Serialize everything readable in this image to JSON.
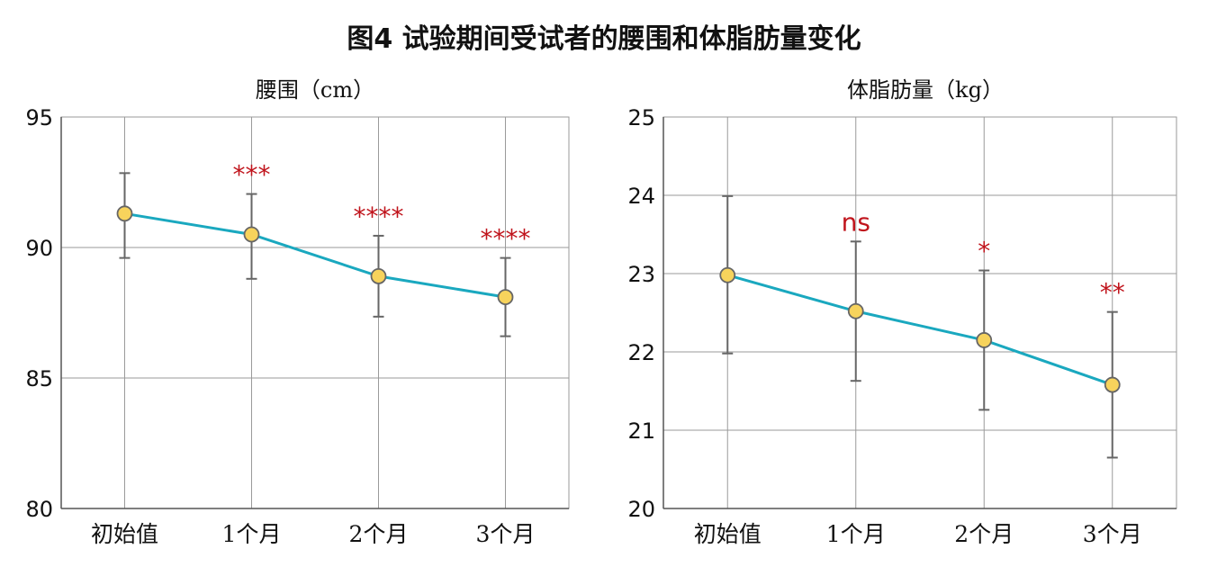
{
  "title": "图4 试验期间受试者的腰围和体脂肪量变化",
  "colors": {
    "line": "#1aa8bf",
    "marker_fill": "#f7d35c",
    "marker_edge": "#666666",
    "error_bar": "#666666",
    "grid": "#9a9a9a",
    "significance": "#c0141c"
  },
  "chart_data": [
    {
      "type": "line",
      "title": "腰围（cm）",
      "categories": [
        "初始值",
        "1个月",
        "2个月",
        "3个月"
      ],
      "values": [
        91.3,
        90.5,
        88.9,
        88.1
      ],
      "error_low": [
        89.6,
        88.8,
        87.35,
        86.6
      ],
      "error_high": [
        92.85,
        92.05,
        90.45,
        89.6
      ],
      "significance": [
        "",
        "***",
        "****",
        "****"
      ],
      "ylim": [
        80,
        95
      ],
      "yticks": [
        80,
        85,
        90,
        95
      ],
      "grid": true
    },
    {
      "type": "line",
      "title": "体脂肪量（kg）",
      "categories": [
        "初始值",
        "1个月",
        "2个月",
        "3个月"
      ],
      "values": [
        22.98,
        22.52,
        22.15,
        21.58
      ],
      "error_low": [
        21.98,
        21.63,
        21.26,
        20.65
      ],
      "error_high": [
        23.99,
        23.41,
        23.04,
        22.51
      ],
      "significance": [
        "",
        "ns",
        "*",
        "**"
      ],
      "ylim": [
        20,
        25
      ],
      "yticks": [
        20,
        21,
        22,
        23,
        24,
        25
      ],
      "grid": true
    }
  ]
}
